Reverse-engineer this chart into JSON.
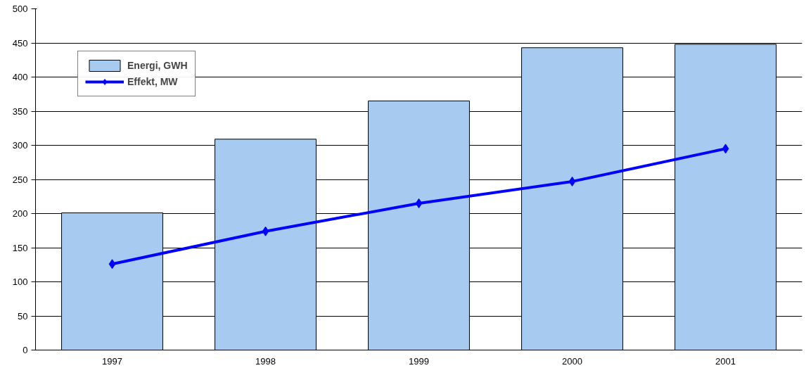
{
  "chart_data": {
    "type": "bar",
    "categories": [
      "1997",
      "1998",
      "1999",
      "2000",
      "2001"
    ],
    "series": [
      {
        "name": "Energi, GWH",
        "color": "#a6caf0",
        "values": [
          201,
          309,
          365,
          443,
          448
        ]
      },
      {
        "name": "Effekt, MW",
        "type": "line",
        "color": "#0000ff",
        "values": [
          126,
          174,
          215,
          247,
          295
        ]
      }
    ],
    "ylim": [
      0,
      500
    ],
    "yticks": [
      0,
      50,
      100,
      150,
      200,
      250,
      300,
      350,
      400,
      450,
      500
    ],
    "grid": "y",
    "legend": "top left",
    "marker": "diamond",
    "line_style": "solid"
  }
}
